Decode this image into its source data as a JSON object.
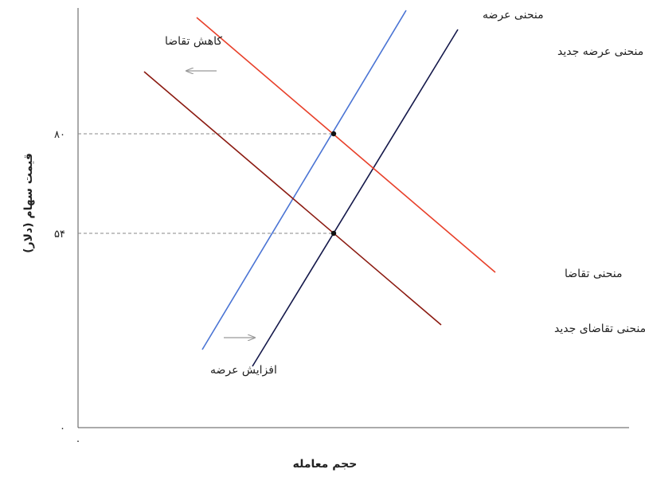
{
  "diagram": {
    "x_axis_title": "حجم معامله",
    "y_axis_title": "قیمت سهام (دلار)",
    "y_ticks": [
      {
        "id": "t80",
        "label": "۸۰"
      },
      {
        "id": "t54",
        "label": "۵۴"
      },
      {
        "id": "t0",
        "label": "۰"
      }
    ],
    "x_ticks": [
      {
        "id": "x0",
        "label": "۰"
      }
    ],
    "curves": {
      "supply": {
        "label": "منحنی عرضه",
        "color": "#4a74d4"
      },
      "new_supply": {
        "label": "منحنی عرضه جدید",
        "color": "#14184a"
      },
      "demand": {
        "label": "منحنی تقاضا",
        "color": "#e8402a"
      },
      "new_demand": {
        "label": "منحنی تقاضای جدید",
        "color": "#8b1a10"
      }
    },
    "annotations": {
      "demand_decrease": "کاهش تقاضا",
      "supply_increase": "افزایش عرضه"
    },
    "arrow_color": "#999999",
    "guide_color": "#888888"
  }
}
